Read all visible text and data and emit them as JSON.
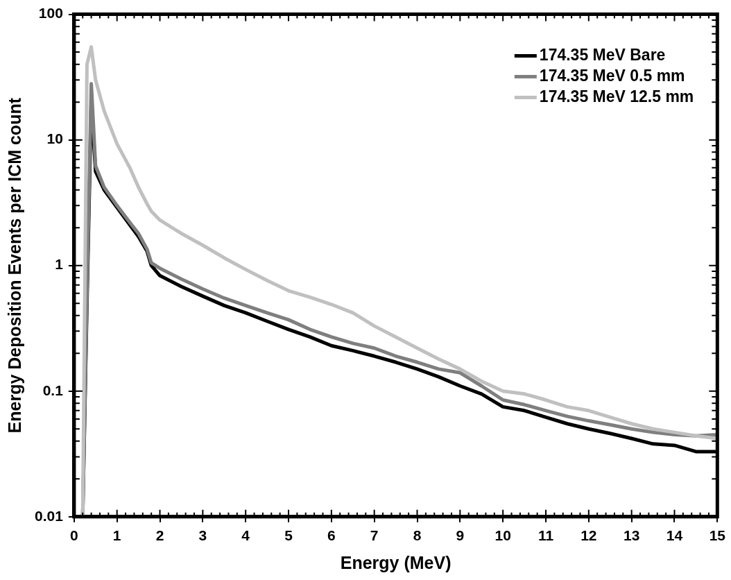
{
  "chart_data": {
    "type": "line",
    "xlabel": "Energy (MeV)",
    "ylabel": "Energy Deposition Events per ICM count",
    "log": "y",
    "grid": false,
    "legend": "top right",
    "marker": "none",
    "line_style": "solid",
    "xlim": [
      0,
      15
    ],
    "xticks": [
      0,
      1,
      2,
      3,
      4,
      5,
      6,
      7,
      8,
      9,
      10,
      11,
      12,
      13,
      14,
      15
    ],
    "ylim": [
      0.01,
      100
    ],
    "yticks": [
      0.01,
      0.1,
      1,
      10,
      100
    ],
    "x": [
      0.2,
      0.3,
      0.4,
      0.5,
      0.7,
      1,
      1.3,
      1.5,
      1.7,
      1.8,
      2,
      2.5,
      3,
      3.5,
      4,
      4.5,
      5,
      5.5,
      6,
      6.5,
      7,
      7.5,
      8,
      8.5,
      9,
      9.5,
      10,
      10.5,
      11,
      11.5,
      12,
      12.5,
      13,
      13.5,
      14,
      14.5,
      15
    ],
    "series": [
      {
        "name": "174.35 MeV Bare",
        "color": "#000000",
        "values": [
          0.01,
          0.5,
          20,
          5.6,
          4,
          2.9,
          2.1,
          1.7,
          1.3,
          1.0,
          0.83,
          0.68,
          0.57,
          0.48,
          0.42,
          0.36,
          0.31,
          0.27,
          0.23,
          0.21,
          0.19,
          0.17,
          0.15,
          0.13,
          0.11,
          0.095,
          0.075,
          0.07,
          0.062,
          0.055,
          0.05,
          0.046,
          0.042,
          0.038,
          0.037,
          0.033,
          0.033
        ]
      },
      {
        "name": "174.35 MeV 0.5 mm",
        "color": "#7f7f7f",
        "values": [
          0.01,
          0.6,
          28,
          6.2,
          4.2,
          3.0,
          2.2,
          1.8,
          1.35,
          1.05,
          0.95,
          0.78,
          0.65,
          0.55,
          0.48,
          0.42,
          0.37,
          0.31,
          0.27,
          0.24,
          0.22,
          0.19,
          0.17,
          0.15,
          0.14,
          0.11,
          0.085,
          0.078,
          0.07,
          0.063,
          0.058,
          0.054,
          0.05,
          0.047,
          0.045,
          0.044,
          0.045
        ]
      },
      {
        "name": "174.35 MeV 12.5 mm",
        "color": "#c0c0c0",
        "values": [
          0.01,
          40,
          55,
          30,
          17,
          9.3,
          6,
          4.2,
          3.1,
          2.7,
          2.3,
          1.8,
          1.45,
          1.15,
          0.93,
          0.76,
          0.63,
          0.56,
          0.49,
          0.42,
          0.33,
          0.27,
          0.22,
          0.18,
          0.15,
          0.12,
          0.1,
          0.095,
          0.085,
          0.075,
          0.07,
          0.062,
          0.055,
          0.05,
          0.047,
          0.044,
          0.042
        ]
      }
    ]
  }
}
